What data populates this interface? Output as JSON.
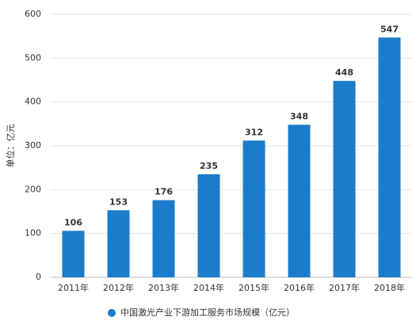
{
  "chart_data": {
    "type": "bar",
    "y_label": "单位：亿元",
    "categories": [
      "2011年",
      "2012年",
      "2013年",
      "2014年",
      "2015年",
      "2016年",
      "2017年",
      "2018年"
    ],
    "series": [
      {
        "name": "中国激光产业下游加工服务市场规模（亿元）",
        "color": "#1b7ccc",
        "values": [
          106,
          153,
          176,
          235,
          312,
          348,
          448,
          547
        ]
      }
    ],
    "ylim": [
      0,
      600
    ],
    "yticks": [
      0,
      100,
      200,
      300,
      400,
      500,
      600
    ],
    "grid": true
  }
}
